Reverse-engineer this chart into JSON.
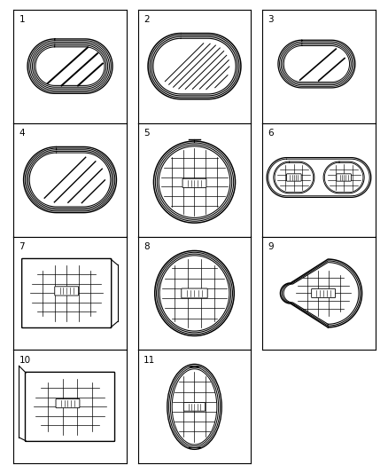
{
  "background_color": "#ffffff",
  "figure_size": [
    4.39,
    5.33
  ],
  "dpi": 100,
  "grid_rows": 4,
  "grid_cols": 3,
  "label_fontsize": 7.5,
  "items": [
    1,
    2,
    3,
    4,
    5,
    6,
    7,
    8,
    9,
    10,
    11
  ]
}
